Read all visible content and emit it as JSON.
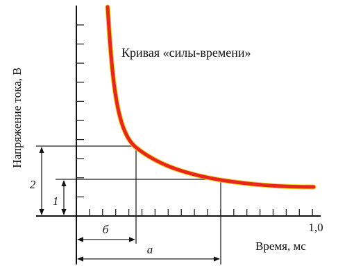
{
  "title": "Кривая «силы-времени»",
  "axes": {
    "y_label": "Напряжение тока, В",
    "x_label": "Время, мс",
    "x_end_label": "1,0"
  },
  "markers": {
    "threshold_2": "2",
    "threshold_1": "1",
    "time_b": "б",
    "time_a": "а"
  }
}
